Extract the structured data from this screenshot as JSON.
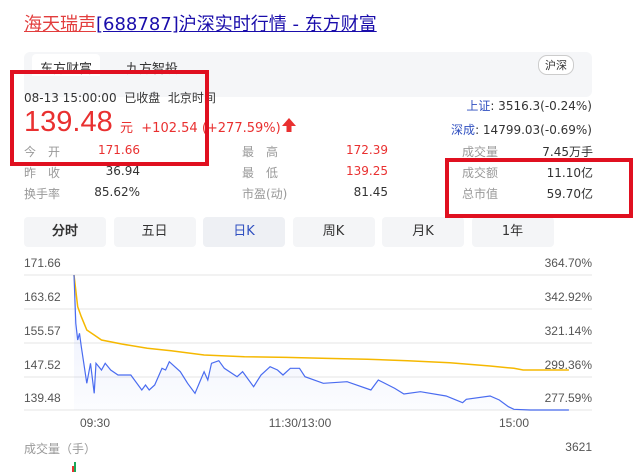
{
  "title": {
    "stock_name": "海天瑞声",
    "rest": "[688787]沪深实时行情 - 东方财富"
  },
  "source_tabs": [
    {
      "label": "东方财富",
      "active": true
    },
    {
      "label": "九方智投",
      "active": false
    }
  ],
  "market_badge": "沪深",
  "quote": {
    "datetime": "08-13 15:00:00",
    "status": "已收盘",
    "timezone": "北京时间",
    "price": "139.48",
    "unit": "元",
    "change": "+102.54",
    "change_pct": "(+277.59%)",
    "direction_icon": "arrow-up-icon"
  },
  "indices": [
    {
      "name": "上证",
      "value": ": 3516.3(-0.24%)"
    },
    {
      "name": "深成",
      "value": ": 14799.03(-0.69%)"
    }
  ],
  "stats": [
    [
      {
        "label": "今　开",
        "value": "171.66",
        "color": "red"
      },
      {
        "label": "最　高",
        "value": "172.39",
        "color": "red"
      },
      {
        "label": "成交量",
        "value": "7.45万手",
        "color": "normal"
      }
    ],
    [
      {
        "label": "昨　收",
        "value": "36.94",
        "color": "normal"
      },
      {
        "label": "最　低",
        "value": "139.25",
        "color": "red"
      },
      {
        "label": "成交额",
        "value": "11.10亿",
        "color": "normal"
      }
    ],
    [
      {
        "label": "换手率",
        "value": "85.62%",
        "color": "normal"
      },
      {
        "label": "市盈(动)",
        "value": "81.45",
        "color": "normal"
      },
      {
        "label": "总市值",
        "value": "59.70亿",
        "color": "normal"
      }
    ]
  ],
  "periods": [
    {
      "label": "分时",
      "active": true
    },
    {
      "label": "五日"
    },
    {
      "label": "日K",
      "highlight": true
    },
    {
      "label": "周K"
    },
    {
      "label": "月K"
    },
    {
      "label": "1年"
    }
  ],
  "chart_data": {
    "type": "line",
    "y_left_ticks": [
      "171.66",
      "163.62",
      "155.57",
      "147.52",
      "139.48"
    ],
    "y_right_ticks": [
      "364.70%",
      "342.92%",
      "321.14%",
      "299.36%",
      "277.59%"
    ],
    "x_ticks": [
      "09:30",
      "11:30/13:00",
      "15:00"
    ],
    "ylim": [
      139.48,
      171.66
    ],
    "colors": {
      "price": "#4a6cf0",
      "average": "#f5b800"
    },
    "price": [
      [
        "09:30",
        171.66
      ],
      [
        "09:31",
        160.14
      ],
      [
        "09:32",
        156.17
      ],
      [
        "09:33",
        157.76
      ],
      [
        "09:34",
        154.58
      ],
      [
        "09:37",
        145.84
      ],
      [
        "09:39",
        150.6
      ],
      [
        "09:41",
        143.45
      ],
      [
        "09:42",
        150.6
      ],
      [
        "09:45",
        149.01
      ],
      [
        "09:47",
        150.6
      ],
      [
        "09:50",
        149.01
      ],
      [
        "09:54",
        147.82
      ],
      [
        "10:01",
        147.82
      ],
      [
        "10:07",
        144.25
      ],
      [
        "10:09",
        145.44
      ],
      [
        "10:11",
        144.25
      ],
      [
        "10:14",
        145.44
      ],
      [
        "10:18",
        149.41
      ],
      [
        "10:20",
        149.01
      ],
      [
        "10:22",
        151.0
      ],
      [
        "10:28",
        148.62
      ],
      [
        "10:32",
        145.84
      ],
      [
        "10:36",
        143.45
      ],
      [
        "10:41",
        148.62
      ],
      [
        "10:43",
        146.63
      ],
      [
        "10:45",
        150.6
      ],
      [
        "10:49",
        151.24
      ],
      [
        "10:52",
        149.41
      ],
      [
        "10:59",
        147.42
      ],
      [
        "11:02",
        148.62
      ],
      [
        "11:08",
        145.04
      ],
      [
        "11:12",
        147.82
      ],
      [
        "11:17",
        149.81
      ],
      [
        "11:21",
        149.01
      ],
      [
        "11:24",
        147.82
      ],
      [
        "11:28",
        149.41
      ],
      [
        "13:03",
        149.41
      ],
      [
        "13:06",
        147.42
      ],
      [
        "13:16",
        145.84
      ],
      [
        "13:29",
        146.23
      ],
      [
        "13:42",
        144.25
      ],
      [
        "13:46",
        146.63
      ],
      [
        "13:55",
        144.64
      ],
      [
        "14:00",
        143.29
      ],
      [
        "14:09",
        143.85
      ],
      [
        "14:23",
        142.82
      ],
      [
        "14:32",
        141.23
      ],
      [
        "14:34",
        142.02
      ],
      [
        "14:47",
        142.82
      ],
      [
        "14:52",
        141.86
      ],
      [
        "14:57",
        140.27
      ],
      [
        "15:00",
        139.64
      ],
      [
        "15:09",
        139.48
      ],
      [
        "15:30",
        139.48
      ]
    ],
    "average": [
      [
        "09:30",
        171.66
      ],
      [
        "09:32",
        164.11
      ],
      [
        "09:34",
        161.73
      ],
      [
        "09:37",
        158.55
      ],
      [
        "09:41",
        157.36
      ],
      [
        "09:45",
        156.17
      ],
      [
        "09:56",
        155.21
      ],
      [
        "10:10",
        154.18
      ],
      [
        "10:23",
        153.62
      ],
      [
        "10:41",
        152.59
      ],
      [
        "11:03",
        152.19
      ],
      [
        "11:26",
        152.03
      ],
      [
        "13:18",
        151.79
      ],
      [
        "13:40",
        151.56
      ],
      [
        "14:02",
        151.24
      ],
      [
        "14:25",
        150.76
      ],
      [
        "14:47",
        149.97
      ],
      [
        "15:00",
        149.41
      ],
      [
        "15:05",
        149.01
      ],
      [
        "15:30",
        149.01
      ]
    ]
  },
  "volume": {
    "label": "成交量（手）",
    "max": "3621"
  }
}
